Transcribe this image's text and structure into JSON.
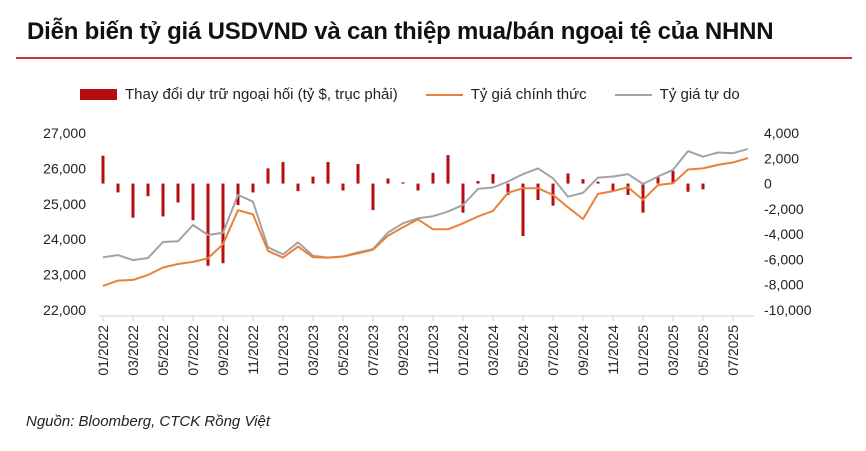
{
  "chart_data": {
    "type": "bar+line",
    "title": "Diễn biến tỷ giá USDVND và can thiệp mua/bán ngoại tệ của NHNN",
    "source": "Nguồn: Bloomberg, CTCK Rồng Việt",
    "legend_position": "top",
    "months": [
      "01/2022",
      "02/2022",
      "03/2022",
      "04/2022",
      "05/2022",
      "06/2022",
      "07/2022",
      "08/2022",
      "09/2022",
      "10/2022",
      "11/2022",
      "12/2022",
      "01/2023",
      "02/2023",
      "03/2023",
      "04/2023",
      "05/2023",
      "06/2023",
      "07/2023",
      "08/2023",
      "09/2023",
      "10/2023",
      "11/2023",
      "12/2023",
      "01/2024",
      "02/2024",
      "03/2024",
      "04/2024",
      "05/2024",
      "06/2024",
      "07/2024",
      "08/2024",
      "09/2024",
      "10/2024",
      "11/2024",
      "12/2024",
      "01/2025",
      "02/2025",
      "03/2025",
      "04/2025",
      "05/2025",
      "06/2025",
      "07/2025",
      "08/2025"
    ],
    "x_tick_labels": [
      "01/2022",
      "03/2022",
      "05/2022",
      "07/2022",
      "09/2022",
      "11/2022",
      "01/2023",
      "03/2023",
      "05/2023",
      "07/2023",
      "09/2023",
      "11/2023",
      "01/2024",
      "03/2024",
      "05/2024",
      "07/2024",
      "09/2024",
      "11/2024",
      "01/2025",
      "03/2025",
      "05/2025",
      "07/2025"
    ],
    "y_left": {
      "min": 22000,
      "max": 27000,
      "ticks": [
        "27,000",
        "26,000",
        "25,000",
        "24,000",
        "23,000",
        "22,000"
      ]
    },
    "y_right": {
      "min": -10000,
      "max": 4000,
      "ticks": [
        "4,000",
        "2,000",
        "0",
        "-2,000",
        "-4,000",
        "-6,000",
        "-8,000",
        "-10,000"
      ]
    },
    "series": [
      {
        "name": "Thay đổi dự trữ ngoại hối (tỷ $, trục phải)",
        "type": "bar",
        "axis": "right",
        "color": "#b50d12",
        "values": [
          2200,
          -700,
          -2700,
          -1000,
          -2600,
          -1500,
          -2900,
          -6500,
          -6300,
          -1700,
          -700,
          1200,
          1700,
          -600,
          550,
          1700,
          -550,
          1550,
          -2100,
          400,
          100,
          -550,
          850,
          2250,
          -2300,
          200,
          750,
          -900,
          -4150,
          -1300,
          -1750,
          800,
          350,
          150,
          -550,
          -900,
          -2300,
          500,
          1000,
          -650,
          -450,
          0,
          0,
          0
        ]
      },
      {
        "name": "Tỷ giá chính thức",
        "type": "line",
        "axis": "left",
        "color": "#e8823a",
        "values": [
          22680,
          22830,
          22850,
          22990,
          23200,
          23300,
          23360,
          23460,
          23860,
          24820,
          24700,
          23670,
          23480,
          23790,
          23490,
          23480,
          23510,
          23600,
          23700,
          24100,
          24340,
          24560,
          24280,
          24280,
          24450,
          24640,
          24800,
          25310,
          25440,
          25440,
          25250,
          24900,
          24570,
          25280,
          25360,
          25470,
          25110,
          25530,
          25580,
          25970,
          26000,
          26100,
          26170,
          26290
        ]
      },
      {
        "name": "Tỷ giá tự do",
        "type": "line",
        "axis": "left",
        "color": "#a3a3a3",
        "values": [
          23490,
          23550,
          23410,
          23470,
          23920,
          23940,
          24400,
          24120,
          24180,
          25250,
          25060,
          23770,
          23570,
          23910,
          23530,
          23480,
          23510,
          23630,
          23720,
          24190,
          24450,
          24590,
          24650,
          24780,
          24970,
          25420,
          25460,
          25630,
          25840,
          26000,
          25720,
          25200,
          25310,
          25740,
          25770,
          25840,
          25560,
          25770,
          25960,
          26490,
          26330,
          26450,
          26430,
          26550
        ]
      }
    ]
  }
}
